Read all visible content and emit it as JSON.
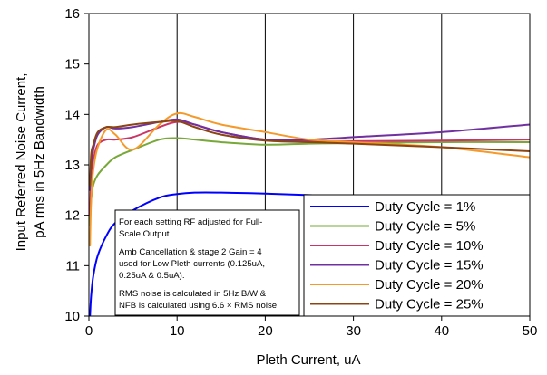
{
  "chart_data": {
    "type": "line",
    "xlabel": "Pleth Current, uA",
    "ylabel_lines": [
      "Input Referred Noise Current,",
      "pA rms in 5Hz Bandwidth"
    ],
    "xlim": [
      0,
      50
    ],
    "ylim": [
      10,
      16
    ],
    "xticks": [
      0,
      10,
      20,
      30,
      40,
      50
    ],
    "yticks": [
      10,
      11,
      12,
      13,
      14,
      15,
      16
    ],
    "grid": "vertical",
    "legend_position": "bottom-right",
    "note_lines": [
      "For each setting RF adjusted for Full-",
      "Scale Output.",
      "Amb Cancellation & stage 2 Gain = 4",
      "used for Low Pleth currents (0.125uA,",
      "0.25uA & 0.5uA).",
      "RMS noise is calculated in 5Hz B/W &",
      "NFB is calculated using 6.6 × RMS noise."
    ],
    "series": [
      {
        "name": "Duty Cycle = 1%",
        "color": "#0000ff",
        "x": [
          0.125,
          0.25,
          0.5,
          1,
          2,
          3,
          5,
          8,
          10,
          12,
          15,
          20,
          25,
          30
        ],
        "y": [
          10.0,
          10.4,
          10.8,
          11.2,
          11.6,
          11.85,
          12.1,
          12.35,
          12.42,
          12.45,
          12.45,
          12.43,
          12.4,
          12.37
        ]
      },
      {
        "name": "Duty Cycle = 5%",
        "color": "#77a838",
        "x": [
          0.125,
          0.25,
          0.5,
          1,
          2,
          3,
          5,
          8,
          10,
          12,
          15,
          20,
          25,
          30,
          40,
          50
        ],
        "y": [
          11.8,
          12.3,
          12.6,
          12.8,
          13.0,
          13.15,
          13.3,
          13.5,
          13.53,
          13.5,
          13.45,
          13.4,
          13.42,
          13.43,
          13.45,
          13.45
        ]
      },
      {
        "name": "Duty Cycle = 10%",
        "color": "#cc3366",
        "x": [
          0.125,
          0.25,
          0.5,
          1,
          2,
          3,
          5,
          8,
          10,
          12,
          15,
          20,
          25,
          30,
          40,
          50
        ],
        "y": [
          12.0,
          12.8,
          13.1,
          13.4,
          13.5,
          13.5,
          13.55,
          13.75,
          13.85,
          13.8,
          13.65,
          13.5,
          13.48,
          13.47,
          13.48,
          13.5
        ]
      },
      {
        "name": "Duty Cycle = 15%",
        "color": "#7030a0",
        "x": [
          0.125,
          0.25,
          0.5,
          1,
          2,
          3,
          5,
          8,
          10,
          12,
          15,
          20,
          25,
          30,
          40,
          50
        ],
        "y": [
          12.5,
          13.0,
          13.3,
          13.6,
          13.75,
          13.72,
          13.75,
          13.85,
          13.9,
          13.8,
          13.65,
          13.5,
          13.5,
          13.55,
          13.65,
          13.8
        ]
      },
      {
        "name": "Duty Cycle = 20%",
        "color": "#f59a2a",
        "x": [
          0.125,
          0.25,
          0.5,
          1,
          2,
          3,
          5,
          8,
          10,
          12,
          15,
          20,
          25,
          30,
          40,
          50
        ],
        "y": [
          11.4,
          12.3,
          12.9,
          13.35,
          13.7,
          13.6,
          13.3,
          13.8,
          14.02,
          13.95,
          13.8,
          13.65,
          13.5,
          13.45,
          13.35,
          13.15
        ]
      },
      {
        "name": "Duty Cycle = 25%",
        "color": "#8b4513",
        "x": [
          0.125,
          0.25,
          0.5,
          1,
          2,
          3,
          5,
          8,
          10,
          12,
          15,
          20,
          25,
          30,
          40,
          50
        ],
        "y": [
          12.6,
          13.2,
          13.4,
          13.65,
          13.75,
          13.75,
          13.8,
          13.85,
          13.87,
          13.75,
          13.6,
          13.48,
          13.45,
          13.42,
          13.35,
          13.27
        ]
      }
    ]
  }
}
